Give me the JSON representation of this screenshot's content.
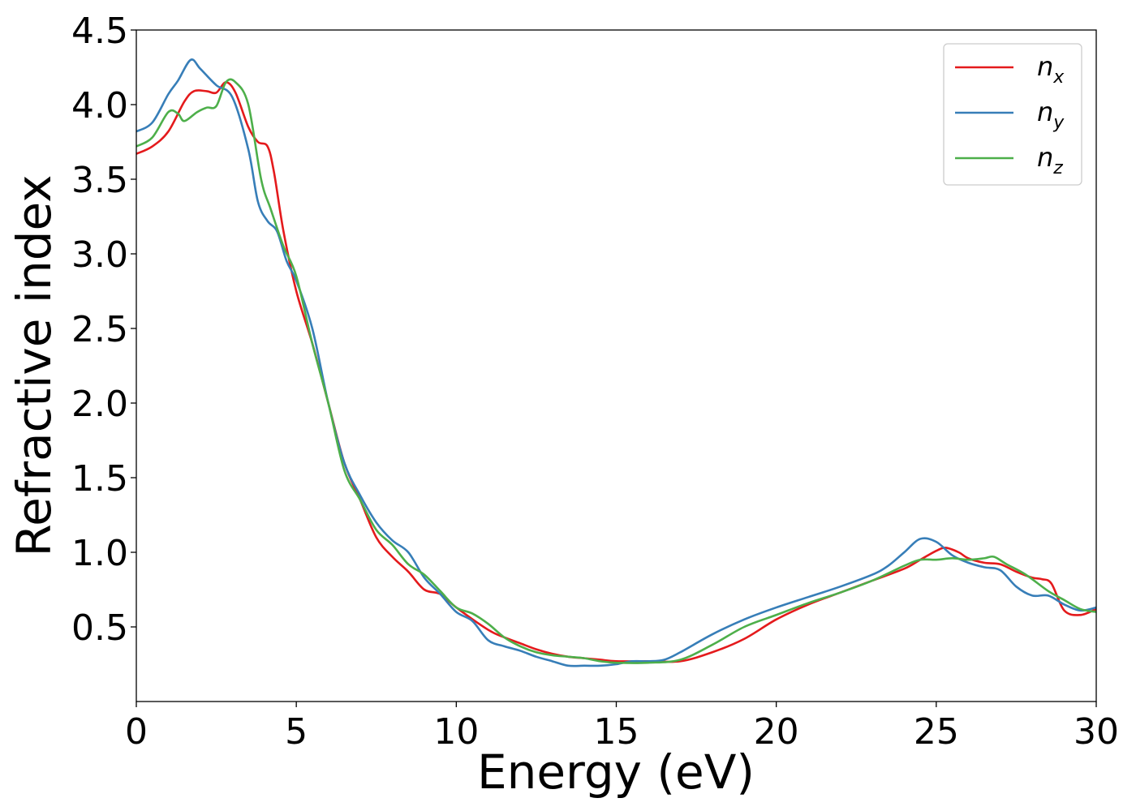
{
  "chart_data": {
    "type": "line",
    "title": "",
    "xlabel": "Energy (eV)",
    "ylabel": "Refractive index",
    "xlim": [
      0,
      30
    ],
    "ylim": [
      0,
      4.5
    ],
    "x_ticks": [
      "0",
      "5",
      "10",
      "15",
      "20",
      "25",
      "30"
    ],
    "y_ticks": [
      "0.5",
      "1.0",
      "1.5",
      "2.0",
      "2.5",
      "3.0",
      "3.5",
      "4.0",
      "4.5"
    ],
    "grid": false,
    "legend_position": "top-right",
    "series": [
      {
        "name": "n_x",
        "legend_base": "n",
        "legend_sub": "x",
        "color": "#e41a1c",
        "x": [
          0,
          0.5,
          1,
          1.5,
          1.8,
          2.2,
          2.5,
          2.8,
          3.1,
          3.5,
          3.8,
          4.1,
          4.3,
          4.6,
          5,
          5.5,
          6,
          6.5,
          7,
          7.5,
          8,
          8.5,
          9,
          9.5,
          10,
          11,
          11.5,
          12,
          12.5,
          13,
          13.5,
          14,
          14.5,
          15,
          16,
          17,
          18,
          19,
          20,
          21,
          22,
          23,
          24,
          24.5,
          25,
          25.3,
          25.7,
          26,
          26.5,
          27,
          27.5,
          28,
          28.3,
          28.6,
          29,
          29.5,
          30
        ],
        "y": [
          3.67,
          3.72,
          3.82,
          4.02,
          4.09,
          4.09,
          4.08,
          4.15,
          4.08,
          3.85,
          3.75,
          3.72,
          3.55,
          3.15,
          2.75,
          2.4,
          2.0,
          1.6,
          1.35,
          1.1,
          0.97,
          0.87,
          0.75,
          0.72,
          0.63,
          0.48,
          0.43,
          0.39,
          0.35,
          0.32,
          0.3,
          0.29,
          0.28,
          0.27,
          0.27,
          0.27,
          0.33,
          0.42,
          0.55,
          0.65,
          0.73,
          0.81,
          0.89,
          0.95,
          1.01,
          1.03,
          1.0,
          0.96,
          0.93,
          0.92,
          0.87,
          0.83,
          0.82,
          0.79,
          0.61,
          0.58,
          0.62
        ]
      },
      {
        "name": "n_y",
        "legend_base": "n",
        "legend_sub": "y",
        "color": "#377eb8",
        "x": [
          0,
          0.5,
          1,
          1.3,
          1.7,
          2,
          2.5,
          3,
          3.5,
          3.8,
          4.1,
          4.4,
          4.7,
          5,
          5.5,
          6,
          6.5,
          7,
          7.5,
          8,
          8.5,
          9,
          9.5,
          10,
          10.5,
          11,
          11.5,
          12,
          12.5,
          13,
          13.5,
          14,
          14.5,
          15,
          15.5,
          16,
          16.5,
          17,
          18,
          19,
          20,
          21,
          22,
          23,
          23.5,
          24,
          24.5,
          25,
          25.5,
          26,
          26.5,
          27,
          27.5,
          28,
          28.5,
          29,
          29.5,
          30
        ],
        "y": [
          3.82,
          3.88,
          4.07,
          4.16,
          4.3,
          4.24,
          4.13,
          4.05,
          3.7,
          3.35,
          3.22,
          3.15,
          2.95,
          2.82,
          2.5,
          2.0,
          1.6,
          1.38,
          1.2,
          1.08,
          1.0,
          0.83,
          0.72,
          0.6,
          0.54,
          0.41,
          0.37,
          0.34,
          0.3,
          0.27,
          0.24,
          0.24,
          0.24,
          0.25,
          0.27,
          0.27,
          0.28,
          0.33,
          0.45,
          0.55,
          0.63,
          0.7,
          0.77,
          0.85,
          0.91,
          1.0,
          1.09,
          1.07,
          0.98,
          0.93,
          0.9,
          0.88,
          0.77,
          0.71,
          0.71,
          0.65,
          0.61,
          0.63
        ]
      },
      {
        "name": "n_z",
        "legend_base": "n",
        "legend_sub": "z",
        "color": "#4daf4a",
        "x": [
          0,
          0.5,
          1,
          1.3,
          1.5,
          1.9,
          2.2,
          2.5,
          2.8,
          3.1,
          3.5,
          3.9,
          4.2,
          4.6,
          5,
          5.5,
          6,
          6.5,
          7,
          7.5,
          8,
          8.5,
          9,
          9.5,
          10,
          10.5,
          11,
          11.5,
          12,
          12.5,
          13,
          13.5,
          14,
          14.5,
          15,
          16,
          17,
          18,
          19,
          20,
          21,
          22,
          23,
          24,
          24.5,
          25,
          25.5,
          26,
          26.5,
          26.8,
          27.2,
          27.8,
          28.5,
          29,
          29.5,
          30
        ],
        "y": [
          3.72,
          3.78,
          3.95,
          3.94,
          3.89,
          3.95,
          3.98,
          3.99,
          4.15,
          4.15,
          4.0,
          3.5,
          3.3,
          3.05,
          2.85,
          2.4,
          2.0,
          1.55,
          1.35,
          1.15,
          1.05,
          0.92,
          0.85,
          0.74,
          0.63,
          0.59,
          0.52,
          0.43,
          0.37,
          0.33,
          0.31,
          0.3,
          0.29,
          0.27,
          0.26,
          0.26,
          0.28,
          0.38,
          0.5,
          0.58,
          0.66,
          0.73,
          0.81,
          0.91,
          0.95,
          0.95,
          0.96,
          0.95,
          0.96,
          0.97,
          0.92,
          0.85,
          0.74,
          0.68,
          0.62,
          0.6
        ]
      }
    ]
  }
}
